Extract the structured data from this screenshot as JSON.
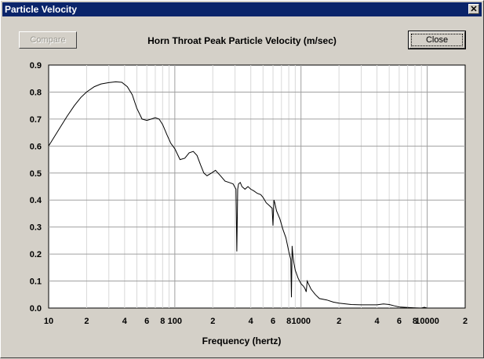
{
  "window": {
    "title": "Particle Velocity",
    "close_glyph": "✕"
  },
  "buttons": {
    "compare": "Compare",
    "close": "Close"
  },
  "chart_data": {
    "type": "line",
    "title": "Horn Throat Peak Particle Velocity (m/sec)",
    "xlabel": "Frequency (hertz)",
    "ylabel": "",
    "xscale": "log",
    "xlim": [
      10,
      20000
    ],
    "ylim": [
      0,
      0.9
    ],
    "grid": true,
    "xtick_labels": [
      {
        "x": 10,
        "label": "10"
      },
      {
        "x": 20,
        "label": "2"
      },
      {
        "x": 40,
        "label": "4"
      },
      {
        "x": 60,
        "label": "6"
      },
      {
        "x": 80,
        "label": "8"
      },
      {
        "x": 100,
        "label": "100"
      },
      {
        "x": 200,
        "label": "2"
      },
      {
        "x": 400,
        "label": "4"
      },
      {
        "x": 600,
        "label": "6"
      },
      {
        "x": 800,
        "label": "8"
      },
      {
        "x": 1000,
        "label": "1000"
      },
      {
        "x": 2000,
        "label": "2"
      },
      {
        "x": 4000,
        "label": "4"
      },
      {
        "x": 6000,
        "label": "6"
      },
      {
        "x": 8000,
        "label": "8"
      },
      {
        "x": 10000,
        "label": "10000"
      },
      {
        "x": 20000,
        "label": "2"
      }
    ],
    "yticks": [
      0.0,
      0.1,
      0.2,
      0.3,
      0.4,
      0.5,
      0.6,
      0.7,
      0.8,
      0.9
    ],
    "ytick_labels": [
      "0.0",
      "0.1",
      "0.2",
      "0.3",
      "0.4",
      "0.5",
      "0.6",
      "0.7",
      "0.8",
      "0.9"
    ],
    "series": [
      {
        "x": [
          10,
          12,
          14,
          16,
          18,
          20,
          23,
          26,
          30,
          34,
          38,
          42,
          46,
          50,
          55,
          60,
          65,
          70,
          75,
          80,
          87,
          93,
          100,
          110,
          120,
          130,
          140,
          150,
          160,
          170,
          180,
          195,
          210,
          230,
          250,
          270,
          290,
          305,
          310,
          315,
          320,
          330,
          340,
          360,
          380,
          400,
          420,
          450,
          480,
          500,
          530,
          560,
          590,
          600,
          610,
          620,
          640,
          680,
          720,
          760,
          800,
          830,
          840,
          850,
          860,
          870,
          880,
          900,
          950,
          1000,
          1050,
          1080,
          1100,
          1120,
          1200,
          1300,
          1400,
          1600,
          1800,
          2000,
          2500,
          3000,
          4000,
          4500,
          5000,
          5500,
          6000,
          7000,
          8000,
          9000,
          9500,
          10000
        ],
        "y": [
          0.6,
          0.66,
          0.71,
          0.75,
          0.78,
          0.8,
          0.82,
          0.83,
          0.835,
          0.838,
          0.836,
          0.82,
          0.79,
          0.74,
          0.7,
          0.695,
          0.7,
          0.705,
          0.7,
          0.68,
          0.64,
          0.61,
          0.59,
          0.55,
          0.555,
          0.575,
          0.58,
          0.565,
          0.53,
          0.5,
          0.49,
          0.5,
          0.51,
          0.49,
          0.47,
          0.465,
          0.46,
          0.44,
          0.21,
          0.44,
          0.46,
          0.465,
          0.45,
          0.44,
          0.45,
          0.44,
          0.435,
          0.425,
          0.42,
          0.41,
          0.39,
          0.38,
          0.37,
          0.305,
          0.4,
          0.39,
          0.36,
          0.33,
          0.29,
          0.26,
          0.21,
          0.18,
          0.04,
          0.23,
          0.2,
          0.18,
          0.165,
          0.14,
          0.11,
          0.09,
          0.08,
          0.07,
          0.06,
          0.1,
          0.07,
          0.05,
          0.035,
          0.03,
          0.022,
          0.018,
          0.013,
          0.012,
          0.012,
          0.015,
          0.013,
          0.008,
          0.004,
          0.002,
          0.001,
          0.0,
          0.003,
          0.0
        ]
      }
    ]
  }
}
